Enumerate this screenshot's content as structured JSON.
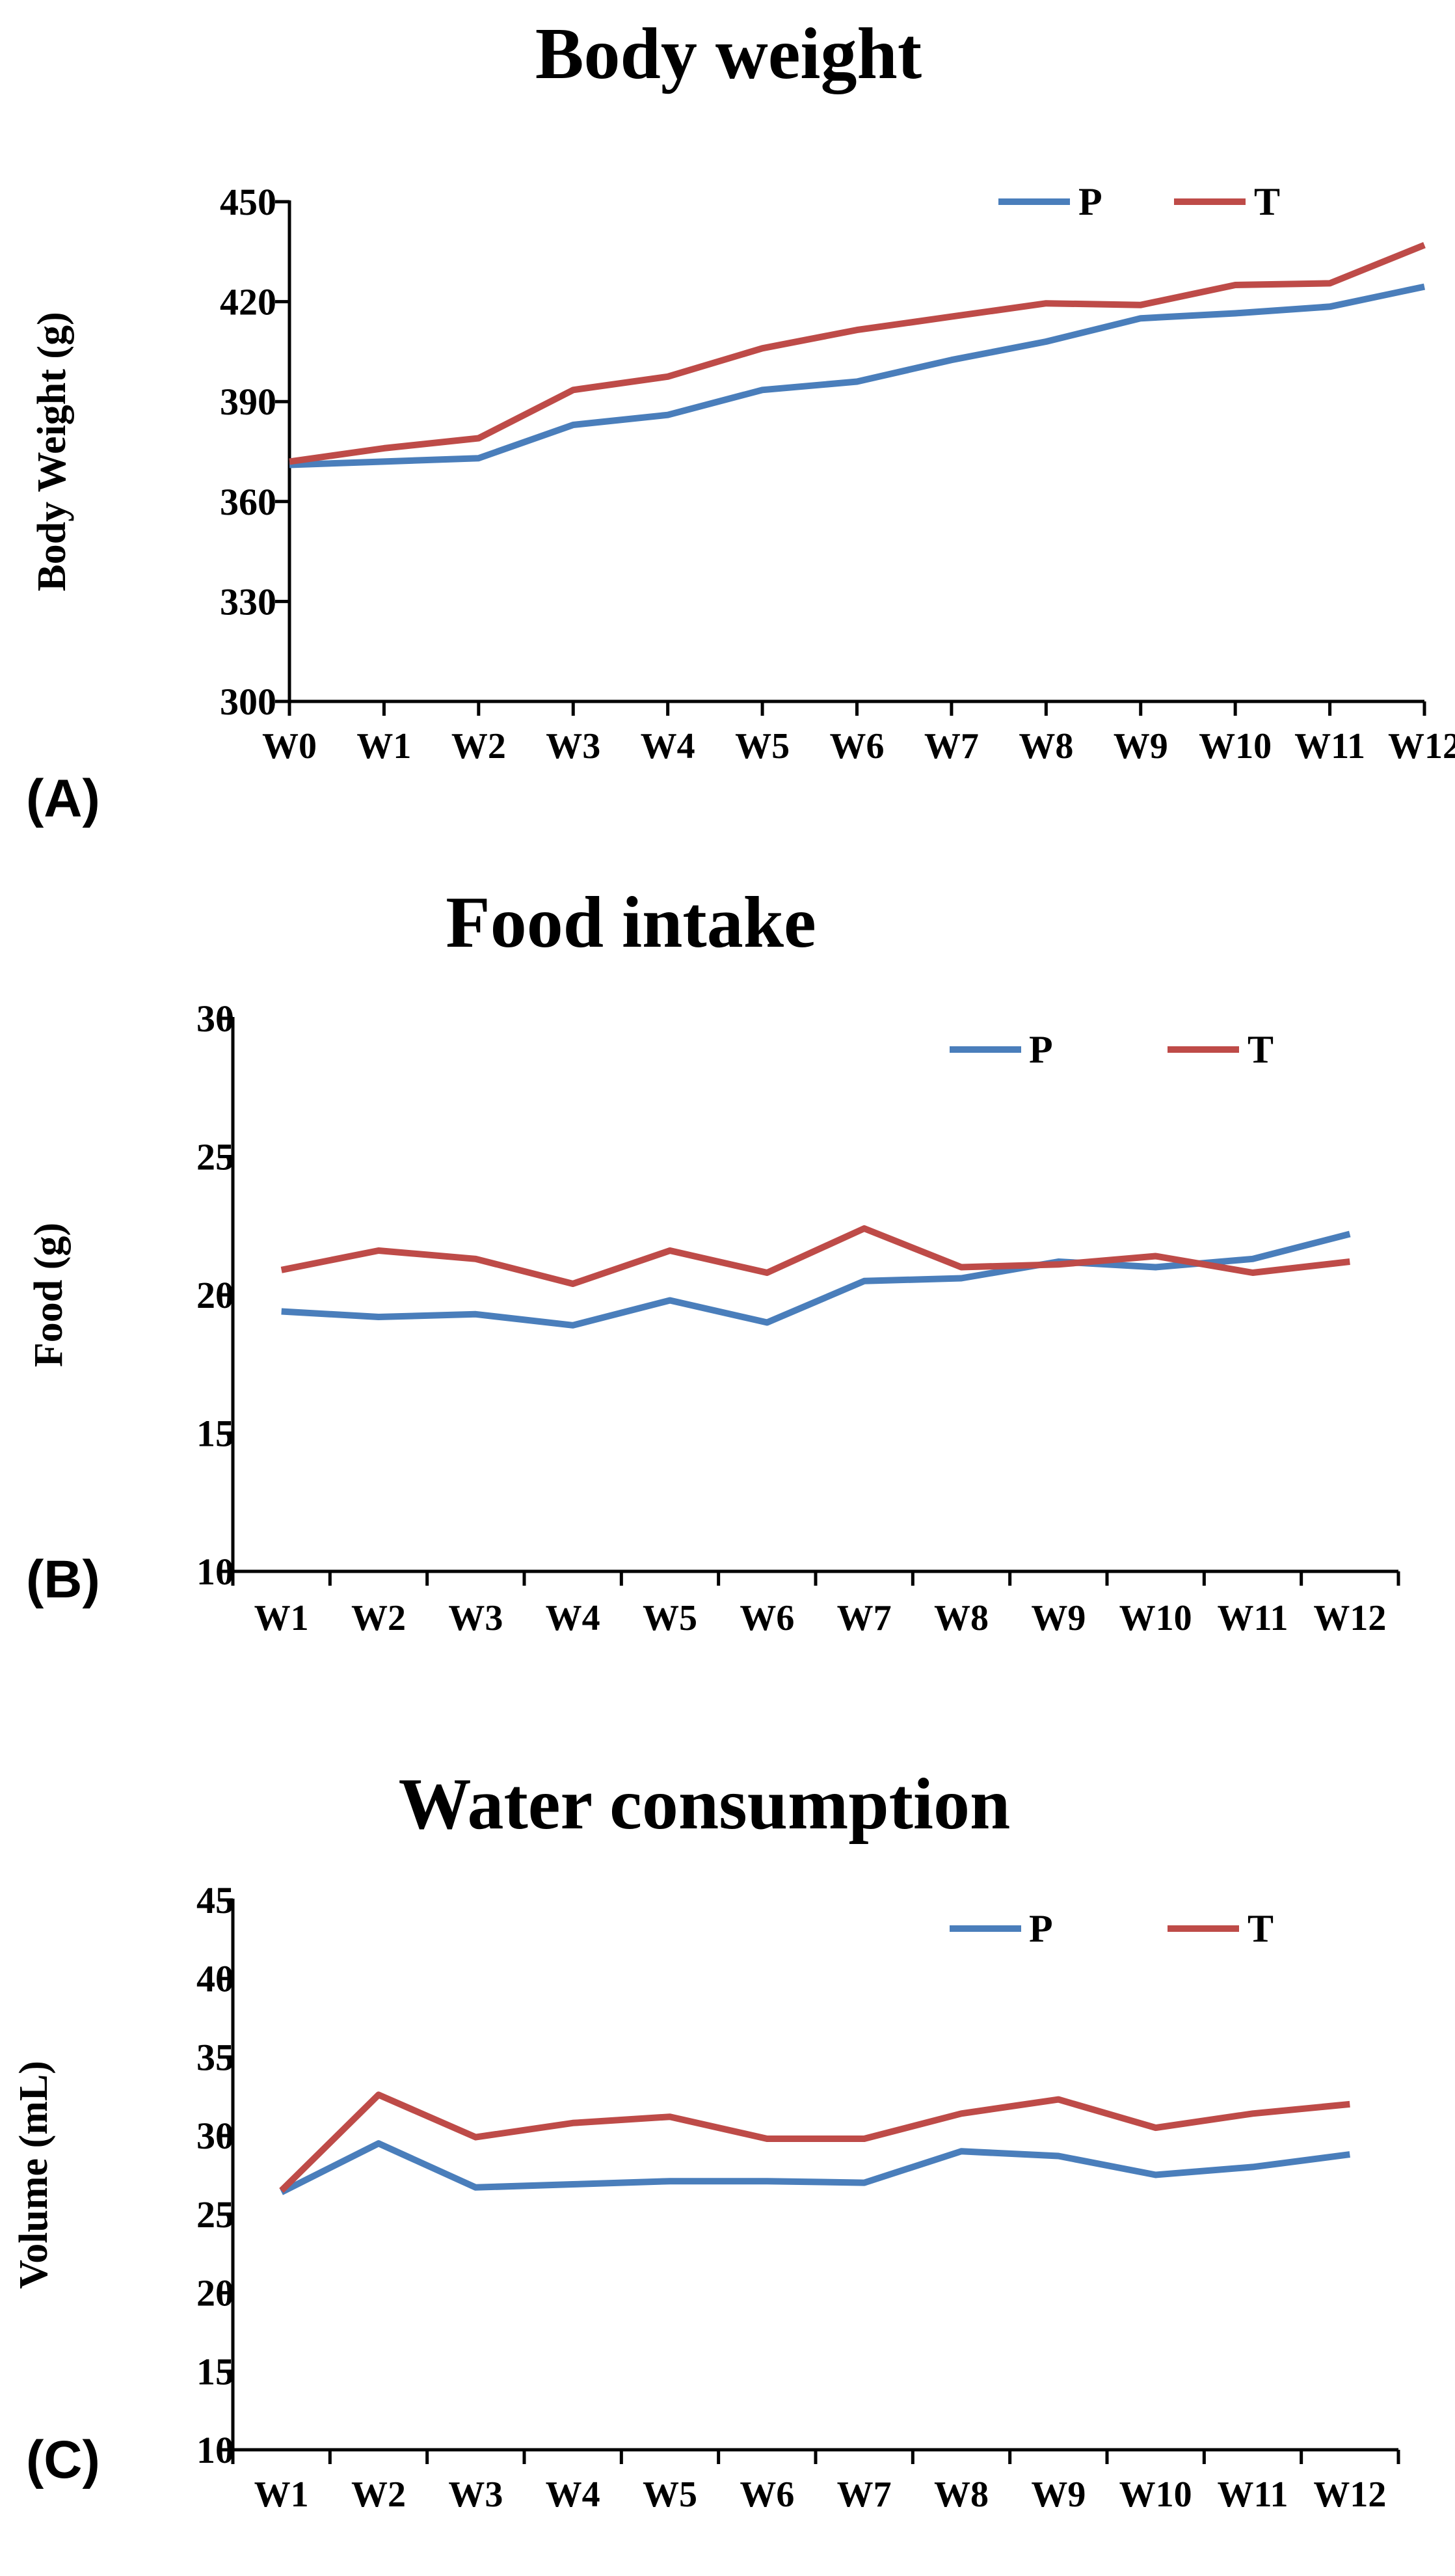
{
  "chart_data": [
    {
      "type": "line",
      "panel_label": "(A)",
      "title": "Body weight",
      "xlabel": "",
      "ylabel": "Body Weight (g)",
      "categories": [
        "W0",
        "W1",
        "W2",
        "W3",
        "W4",
        "W5",
        "W6",
        "W7",
        "W8",
        "W9",
        "W10",
        "W11",
        "W12"
      ],
      "ylim": [
        300,
        450
      ],
      "yticks": [
        300,
        330,
        360,
        390,
        420,
        450
      ],
      "legend_position": "top-right",
      "grid": false,
      "series": [
        {
          "name": "P",
          "color": "#4a7ebb",
          "values": [
            371,
            372,
            373,
            383,
            386,
            393.5,
            396,
            402.5,
            408,
            415,
            416.5,
            418.5,
            424.5
          ]
        },
        {
          "name": "T",
          "color": "#be4b48",
          "values": [
            372,
            376,
            379,
            393.5,
            397.5,
            406,
            411.5,
            415.5,
            419.5,
            419,
            425,
            425.5,
            437
          ]
        }
      ]
    },
    {
      "type": "line",
      "panel_label": "(B)",
      "title": "Food intake",
      "xlabel": "",
      "ylabel": "Food (g)",
      "categories": [
        "W1",
        "W2",
        "W3",
        "W4",
        "W5",
        "W6",
        "W7",
        "W8",
        "W9",
        "W10",
        "W11",
        "W12"
      ],
      "ylim": [
        10,
        30
      ],
      "yticks": [
        10,
        15,
        20,
        25,
        30
      ],
      "legend_position": "top-right",
      "grid": false,
      "series": [
        {
          "name": "P",
          "color": "#4a7ebb",
          "values": [
            19.4,
            19.2,
            19.3,
            18.9,
            19.8,
            19.0,
            20.5,
            20.6,
            21.2,
            21.0,
            21.3,
            22.2
          ]
        },
        {
          "name": "T",
          "color": "#be4b48",
          "values": [
            20.9,
            21.6,
            21.3,
            20.4,
            21.6,
            20.8,
            22.4,
            21.0,
            21.1,
            21.4,
            20.8,
            21.2
          ]
        }
      ]
    },
    {
      "type": "line",
      "panel_label": "(C)",
      "title": "Water consumption",
      "xlabel": "",
      "ylabel": "Volume (mL)",
      "categories": [
        "W1",
        "W2",
        "W3",
        "W4",
        "W5",
        "W6",
        "W7",
        "W8",
        "W9",
        "W10",
        "W11",
        "W12"
      ],
      "ylim": [
        10,
        45
      ],
      "yticks": [
        10,
        15,
        20,
        25,
        30,
        35,
        40,
        45
      ],
      "legend_position": "top-right",
      "grid": false,
      "series": [
        {
          "name": "P",
          "color": "#4a7ebb",
          "values": [
            26.4,
            29.5,
            26.7,
            26.9,
            27.1,
            27.1,
            27.0,
            29.0,
            28.7,
            27.5,
            28.0,
            28.8
          ]
        },
        {
          "name": "T",
          "color": "#be4b48",
          "values": [
            26.5,
            32.6,
            29.9,
            30.8,
            31.2,
            29.8,
            29.8,
            31.4,
            32.3,
            30.5,
            31.4,
            32.0
          ]
        }
      ]
    }
  ]
}
